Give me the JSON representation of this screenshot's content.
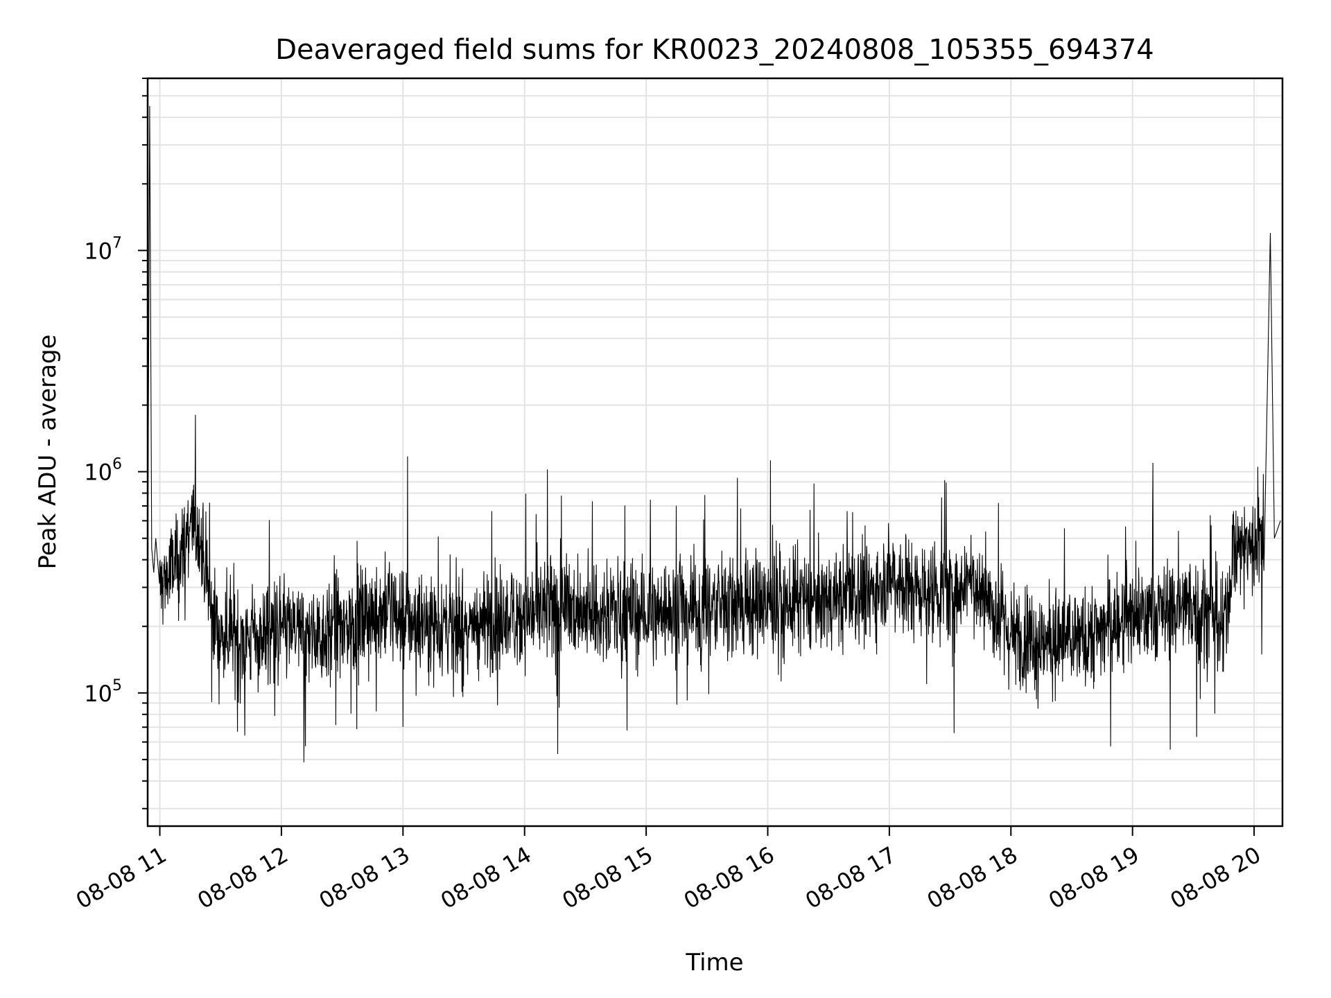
{
  "chart_data": {
    "type": "line",
    "title": "Deaveraged field sums for KR0023_20240808_105355_694374",
    "xlabel": "Time",
    "ylabel": "Peak ADU - average",
    "yscale": "log",
    "grid": true,
    "grid_minor": true,
    "legend": "none",
    "xlim": [
      "2024-08-08 10:54",
      "2024-08-08 20:14"
    ],
    "ylim": [
      25000,
      60000000
    ],
    "x_ticks": [
      "08-08 11",
      "08-08 12",
      "08-08 13",
      "08-08 14",
      "08-08 15",
      "08-08 16",
      "08-08 17",
      "08-08 18",
      "08-08 19",
      "08-08 20"
    ],
    "y_ticks": [
      {
        "value": 100000,
        "base": "10",
        "exp": "5"
      },
      {
        "value": 1000000,
        "base": "10",
        "exp": "6"
      },
      {
        "value": 10000000,
        "base": "10",
        "exp": "7"
      }
    ],
    "series": [
      {
        "color": "#000000",
        "x": [
          "2024-08-08 10:54",
          "2024-08-08 10:55",
          "2024-08-08 10:56",
          "2024-08-08 10:57",
          "2024-08-08 10:58",
          "2024-08-08 11:00",
          "2024-08-08 11:05",
          "2024-08-08 11:10",
          "2024-08-08 11:15",
          "2024-08-08 11:20",
          "2024-08-08 11:25",
          "2024-08-08 11:30",
          "2024-08-08 11:35",
          "2024-08-08 11:40",
          "2024-08-08 11:50",
          "2024-08-08 12:00",
          "2024-08-08 12:15",
          "2024-08-08 12:30",
          "2024-08-08 12:45",
          "2024-08-08 12:50",
          "2024-08-08 13:00",
          "2024-08-08 13:30",
          "2024-08-08 14:00",
          "2024-08-08 14:30",
          "2024-08-08 15:00",
          "2024-08-08 15:30",
          "2024-08-08 16:00",
          "2024-08-08 16:30",
          "2024-08-08 16:50",
          "2024-08-08 17:00",
          "2024-08-08 17:10",
          "2024-08-08 17:30",
          "2024-08-08 17:40",
          "2024-08-08 18:00",
          "2024-08-08 18:30",
          "2024-08-08 19:00",
          "2024-08-08 19:30",
          "2024-08-08 19:40",
          "2024-08-08 19:45",
          "2024-08-08 19:50",
          "2024-08-08 20:00",
          "2024-08-08 20:05",
          "2024-08-08 20:08",
          "2024-08-08 20:10",
          "2024-08-08 20:13"
        ],
        "y": [
          300000,
          45000000,
          450000,
          350000,
          500000,
          300000,
          350000,
          400000,
          600000,
          500000,
          250000,
          180000,
          200000,
          170000,
          180000,
          200000,
          180000,
          200000,
          220000,
          240000,
          220000,
          200000,
          230000,
          240000,
          230000,
          250000,
          250000,
          260000,
          280000,
          350000,
          300000,
          280000,
          350000,
          180000,
          170000,
          220000,
          250000,
          220000,
          180000,
          450000,
          480000,
          420000,
          12000000,
          500000,
          600000
        ]
      }
    ]
  }
}
